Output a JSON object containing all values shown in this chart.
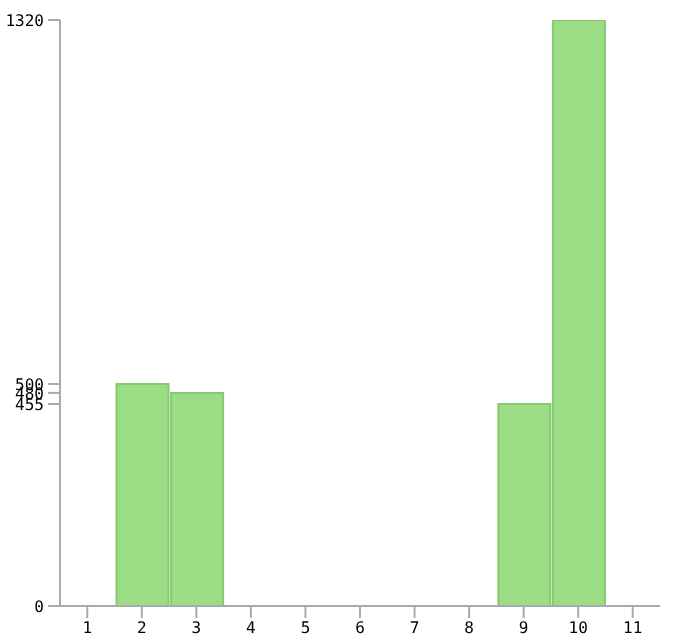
{
  "chart_data": {
    "type": "bar",
    "categories": [
      "1",
      "2",
      "3",
      "4",
      "5",
      "6",
      "7",
      "8",
      "9",
      "10",
      "11"
    ],
    "values": [
      0,
      500,
      480,
      0,
      0,
      0,
      0,
      0,
      455,
      1320,
      0
    ],
    "color": "#9bdd85",
    "ylim": [
      0,
      1320
    ],
    "yticks": [
      0,
      455,
      480,
      500,
      1320
    ],
    "grid": false
  }
}
